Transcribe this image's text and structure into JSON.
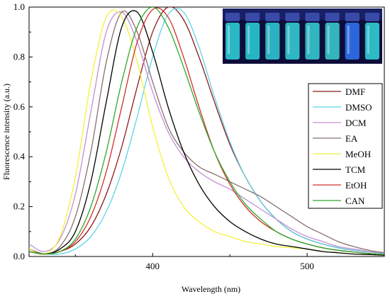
{
  "chart_data": {
    "type": "line",
    "xlabel": "Wavelength (nm)",
    "ylabel": "Fluorescence intensity (a.u.)",
    "xlim": [
      320,
      550
    ],
    "ylim": [
      0,
      1.0
    ],
    "xticks": [
      400,
      500
    ],
    "yticks": [
      0.0,
      0.2,
      0.4,
      0.6,
      0.8,
      1.0
    ],
    "grid": false,
    "legend_position": "right",
    "series": [
      {
        "name": "DMF",
        "color": "#8b1a1a",
        "x": [
          320,
          330,
          340,
          350,
          360,
          370,
          380,
          390,
          400,
          410,
          420,
          430,
          440,
          450,
          460,
          470,
          480,
          490,
          500,
          510,
          520,
          530,
          540,
          550
        ],
        "y": [
          0.03,
          0.01,
          0.02,
          0.05,
          0.12,
          0.25,
          0.44,
          0.68,
          0.9,
          1.0,
          0.95,
          0.8,
          0.62,
          0.45,
          0.32,
          0.22,
          0.15,
          0.1,
          0.07,
          0.05,
          0.035,
          0.025,
          0.018,
          0.012
        ]
      },
      {
        "name": "DMSO",
        "color": "#5fd3e8",
        "x": [
          320,
          330,
          340,
          350,
          360,
          370,
          380,
          390,
          400,
          410,
          420,
          430,
          440,
          450,
          460,
          470,
          480,
          490,
          500,
          510,
          520,
          530,
          540,
          550
        ],
        "y": [
          0.02,
          0.01,
          0.01,
          0.03,
          0.08,
          0.18,
          0.34,
          0.56,
          0.8,
          0.97,
          0.98,
          0.84,
          0.64,
          0.46,
          0.32,
          0.22,
          0.15,
          0.1,
          0.07,
          0.05,
          0.035,
          0.025,
          0.018,
          0.012
        ]
      },
      {
        "name": "DCM",
        "color": "#c390d4",
        "x": [
          320,
          330,
          340,
          350,
          360,
          370,
          380,
          390,
          400,
          410,
          420,
          430,
          440,
          450,
          460,
          470,
          480,
          490,
          500,
          510,
          520,
          530,
          540,
          550
        ],
        "y": [
          0.05,
          0.02,
          0.07,
          0.25,
          0.58,
          0.9,
          0.98,
          0.86,
          0.66,
          0.5,
          0.4,
          0.34,
          0.3,
          0.27,
          0.23,
          0.19,
          0.15,
          0.11,
          0.08,
          0.06,
          0.04,
          0.03,
          0.02,
          0.015
        ]
      },
      {
        "name": "EA",
        "color": "#8b6f6f",
        "x": [
          320,
          330,
          340,
          350,
          360,
          370,
          380,
          390,
          400,
          410,
          420,
          430,
          440,
          450,
          460,
          470,
          480,
          490,
          500,
          510,
          520,
          530,
          540,
          550
        ],
        "y": [
          0.03,
          0.01,
          0.04,
          0.16,
          0.42,
          0.78,
          0.98,
          0.9,
          0.7,
          0.52,
          0.42,
          0.36,
          0.33,
          0.3,
          0.27,
          0.24,
          0.2,
          0.16,
          0.12,
          0.09,
          0.06,
          0.04,
          0.025,
          0.015
        ]
      },
      {
        "name": "MeOH",
        "color": "#f2f23a",
        "x": [
          320,
          330,
          340,
          350,
          360,
          370,
          380,
          390,
          400,
          410,
          420,
          430,
          440,
          450,
          460,
          470,
          480,
          490,
          500,
          510,
          520,
          530,
          540,
          550
        ],
        "y": [
          0.03,
          0.01,
          0.08,
          0.32,
          0.7,
          0.96,
          0.96,
          0.78,
          0.52,
          0.32,
          0.2,
          0.14,
          0.1,
          0.08,
          0.06,
          0.05,
          0.04,
          0.035,
          0.03,
          0.02,
          0.015,
          0.01,
          0.008,
          0.005
        ]
      },
      {
        "name": "TCM",
        "color": "#000000",
        "x": [
          320,
          330,
          340,
          350,
          360,
          370,
          380,
          390,
          400,
          410,
          420,
          430,
          440,
          450,
          460,
          470,
          480,
          490,
          500,
          510,
          520,
          530,
          540,
          550
        ],
        "y": [
          0.02,
          0.01,
          0.03,
          0.1,
          0.3,
          0.62,
          0.92,
          0.98,
          0.82,
          0.6,
          0.42,
          0.29,
          0.2,
          0.14,
          0.1,
          0.07,
          0.05,
          0.04,
          0.03,
          0.02,
          0.015,
          0.01,
          0.008,
          0.005
        ]
      },
      {
        "name": "EtOH",
        "color": "#d0302a",
        "x": [
          320,
          330,
          340,
          350,
          360,
          370,
          380,
          390,
          400,
          410,
          420,
          430,
          440,
          450,
          460,
          470,
          480,
          490,
          500,
          510,
          520,
          530,
          540,
          550
        ],
        "y": [
          0.02,
          0.01,
          0.02,
          0.06,
          0.16,
          0.34,
          0.6,
          0.86,
          0.99,
          0.96,
          0.8,
          0.6,
          0.42,
          0.29,
          0.2,
          0.14,
          0.1,
          0.07,
          0.05,
          0.035,
          0.025,
          0.018,
          0.012,
          0.008
        ]
      },
      {
        "name": "CAN",
        "color": "#2ea82e",
        "x": [
          320,
          330,
          340,
          350,
          360,
          370,
          380,
          390,
          400,
          410,
          420,
          430,
          440,
          450,
          460,
          470,
          480,
          490,
          500,
          510,
          520,
          530,
          540,
          550
        ],
        "y": [
          0.02,
          0.01,
          0.02,
          0.07,
          0.2,
          0.42,
          0.7,
          0.92,
          1.0,
          0.92,
          0.76,
          0.58,
          0.42,
          0.3,
          0.21,
          0.15,
          0.1,
          0.07,
          0.05,
          0.035,
          0.025,
          0.018,
          0.012,
          0.008
        ]
      }
    ]
  },
  "inset_photo": {
    "vials": [
      {
        "color": "#2ec7d3"
      },
      {
        "color": "#28c3d0"
      },
      {
        "color": "#2fbfcc"
      },
      {
        "color": "#33c6d0"
      },
      {
        "color": "#34c4cd"
      },
      {
        "color": "#37c2c9"
      },
      {
        "color": "#2e6fe8"
      },
      {
        "color": "#2fc9d2"
      }
    ]
  }
}
